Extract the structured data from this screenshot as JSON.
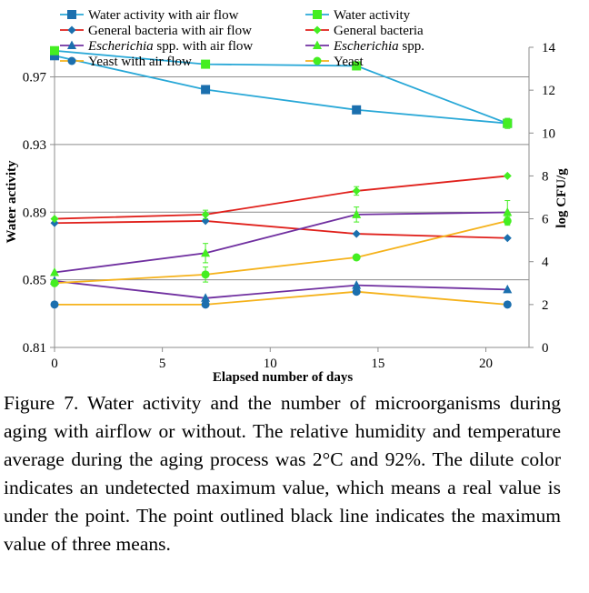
{
  "chart_data": {
    "type": "line",
    "xlabel": "Elapsed number of days",
    "ylabel_left": "Water activity",
    "ylabel_right": "log CFU/g",
    "xlim": [
      0,
      22
    ],
    "ylim_left": [
      0.81,
      0.9875
    ],
    "ylim_right": [
      0,
      14
    ],
    "x_ticks": [
      0,
      5,
      10,
      15,
      20
    ],
    "y_left_ticks": [
      0.81,
      0.85,
      0.89,
      0.93,
      0.97
    ],
    "y_left_tick_labels": [
      "0.81",
      "0.85",
      "0.89",
      "0.93",
      "0.97"
    ],
    "y_right_ticks": [
      0,
      2,
      4,
      6,
      8,
      10,
      12,
      14
    ],
    "grid": "horizontal",
    "legend_placement": "top",
    "x": [
      0,
      7,
      14,
      21
    ],
    "series": [
      {
        "name": "Water activity with air flow",
        "axis": "left",
        "color": "#29a8d7",
        "marker": "square",
        "marker_color": "#1b6fae",
        "values": [
          0.9825,
          0.9625,
          0.9505,
          0.9425
        ]
      },
      {
        "name": "Water activity",
        "axis": "left",
        "color": "#29a8d7",
        "marker": "square",
        "marker_color": "#44ee22",
        "values": [
          0.9855,
          0.9775,
          0.9765,
          0.9425
        ],
        "errors": [
          0,
          0,
          0,
          0.003
        ]
      },
      {
        "name": "General bacteria with air flow",
        "axis": "right",
        "color": "#e0201b",
        "marker": "diamond",
        "marker_color": "#1b6fae",
        "values": [
          5.8,
          5.9,
          5.3,
          5.1
        ]
      },
      {
        "name": "General bacteria",
        "axis": "right",
        "color": "#e0201b",
        "marker": "diamond",
        "marker_color": "#44ee22",
        "values": [
          6.0,
          6.2,
          7.3,
          8.0
        ],
        "errors": [
          0,
          0.2,
          0.2,
          0
        ]
      },
      {
        "name": "Escherichia spp. with air flow",
        "name_italic": "Escherichia",
        "name_rest": " spp. with air flow",
        "axis": "right",
        "color": "#7030a0",
        "marker": "triangle",
        "marker_color": "#1b6fae",
        "values": [
          3.1,
          2.3,
          2.9,
          2.7
        ]
      },
      {
        "name": "Escherichia spp.",
        "name_italic": "Escherichia",
        "name_rest": " spp.",
        "axis": "right",
        "color": "#7030a0",
        "marker": "triangle",
        "marker_color": "#44ee22",
        "values": [
          3.5,
          4.4,
          6.2,
          6.3
        ],
        "errors": [
          0,
          0.45,
          0.35,
          0.55
        ]
      },
      {
        "name": "Yeast with air flow",
        "axis": "right",
        "color": "#f5b21b",
        "marker": "circle",
        "marker_color": "#1b6fae",
        "values": [
          2.0,
          2.0,
          2.6,
          2.0
        ]
      },
      {
        "name": "Yeast",
        "axis": "right",
        "color": "#f5b21b",
        "marker": "circle",
        "marker_color": "#44ee22",
        "values": [
          3.0,
          3.4,
          4.2,
          5.9
        ],
        "errors": [
          0,
          0.35,
          0,
          0.2
        ]
      }
    ]
  },
  "caption": "Figure 7. Water activity and the number of microorganisms during aging with airflow or without. The relative humidity and temperature average during the aging process was 2°C and 92%. The dilute color indicates an undetected maximum value, which means a real value is under the point. The point outlined black line indicates the maximum value of three means."
}
